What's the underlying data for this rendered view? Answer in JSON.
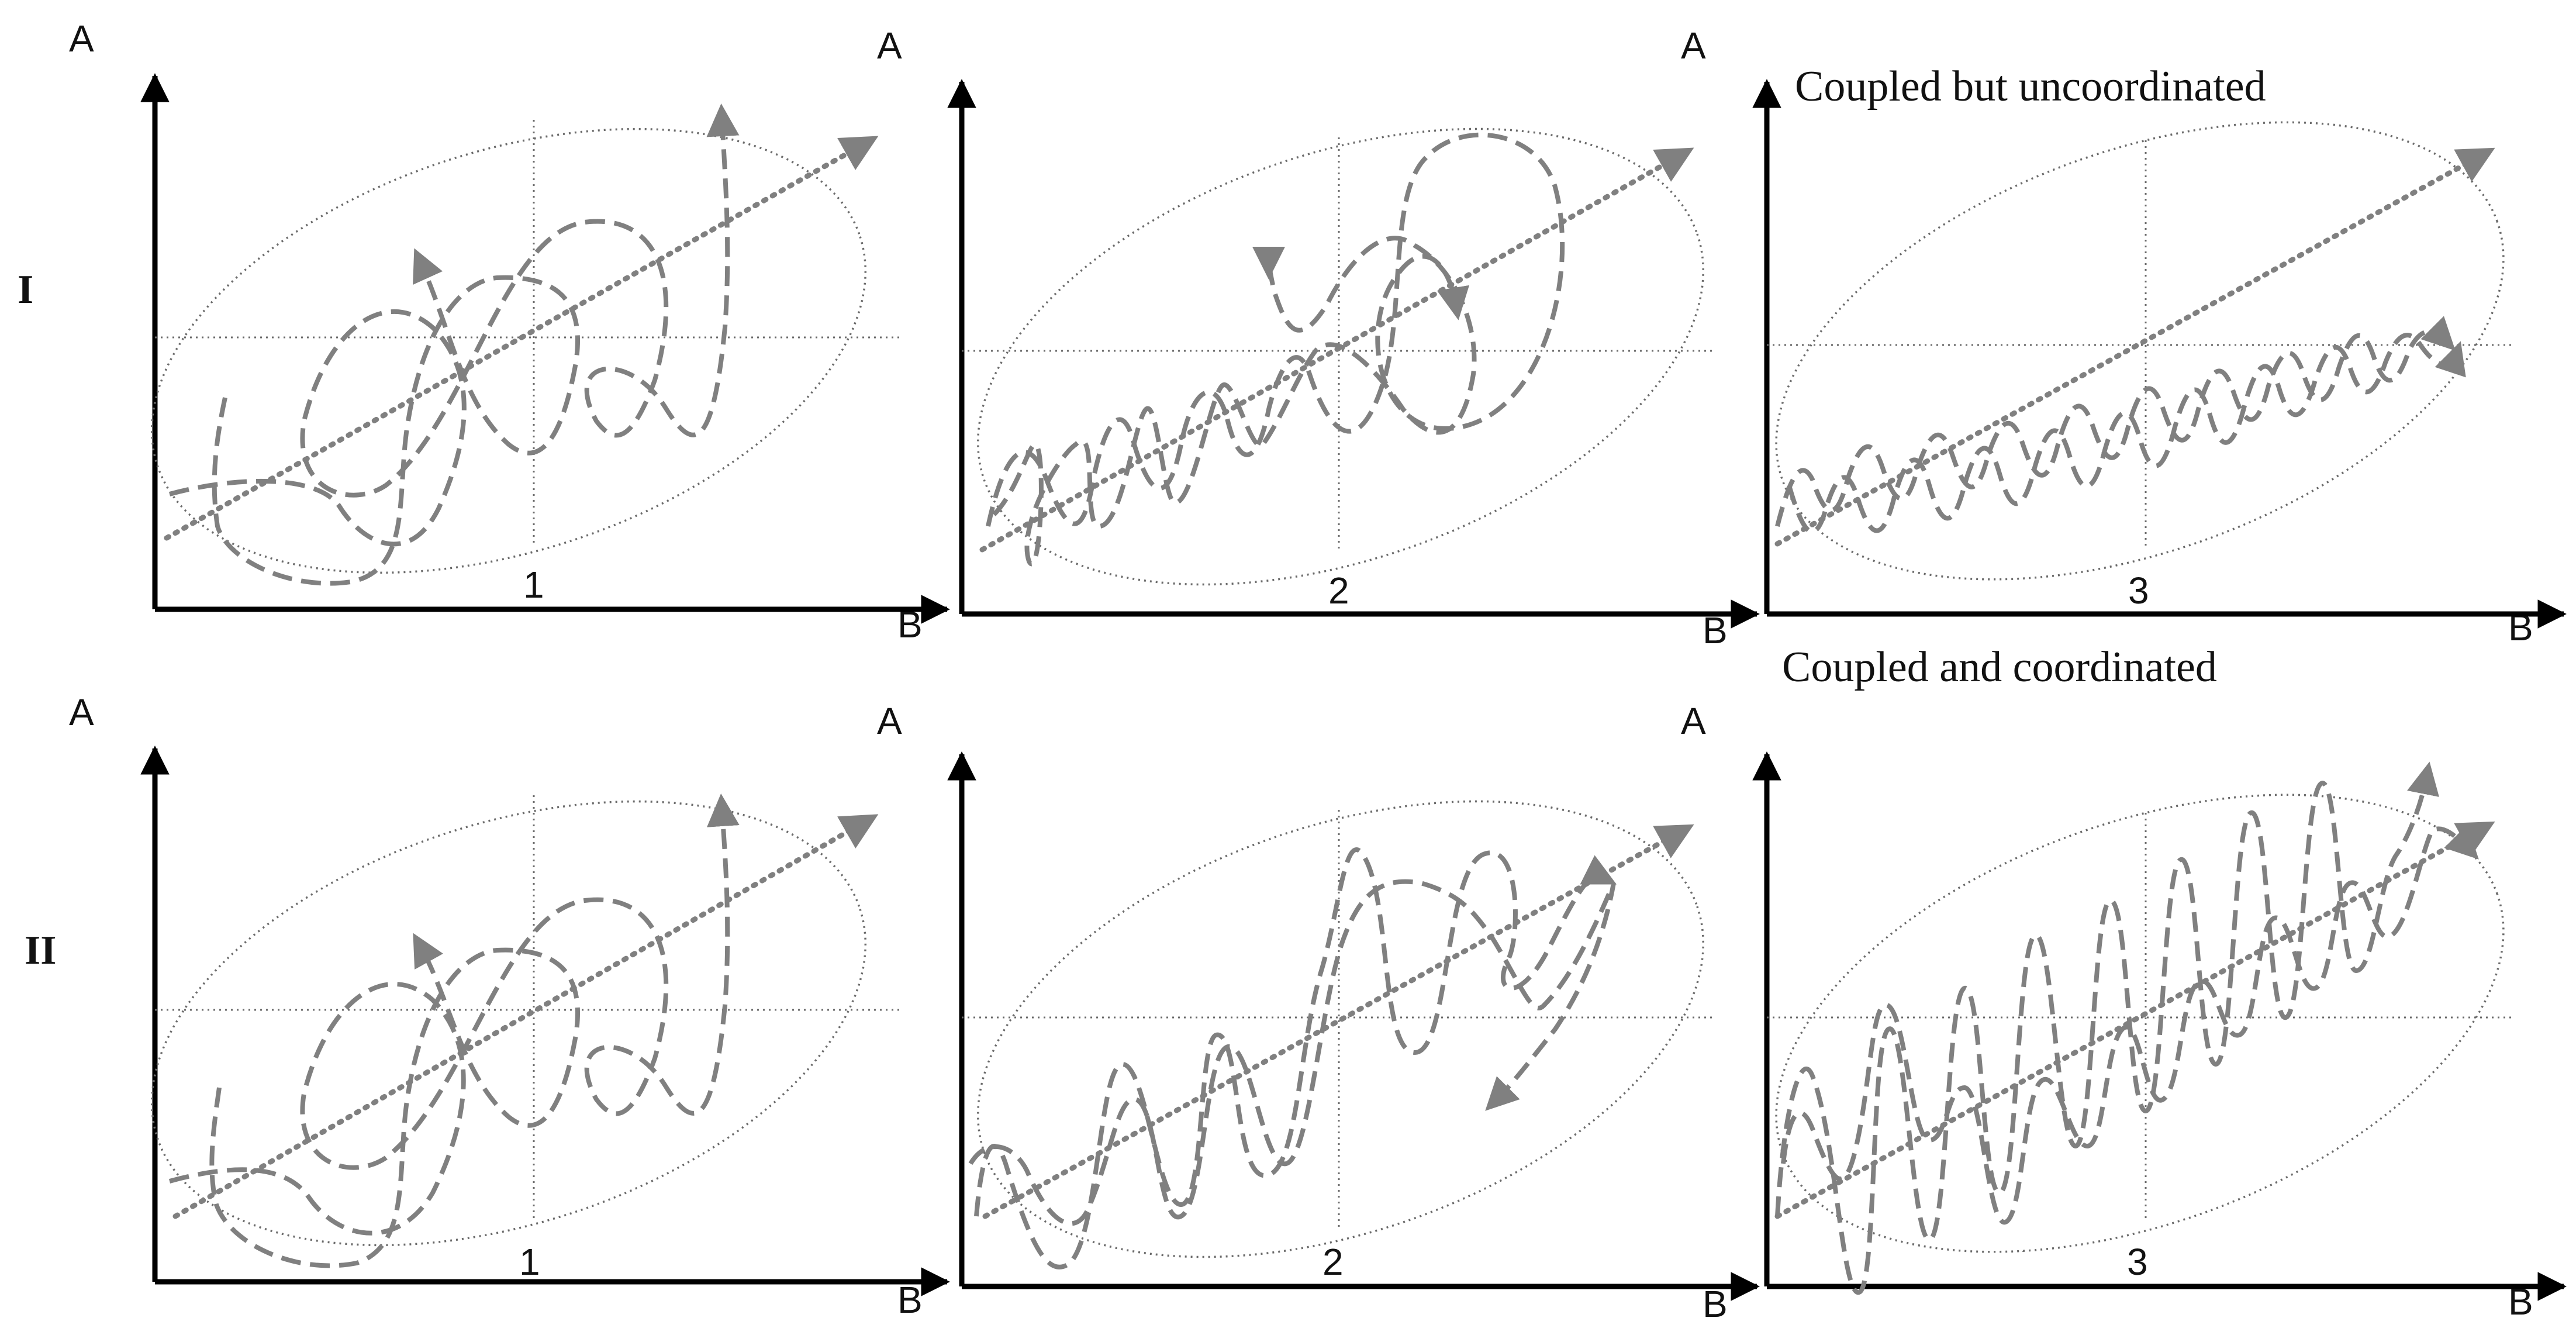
{
  "rows": [
    {
      "label": "I",
      "panels": [
        "1",
        "2",
        "3"
      ]
    },
    {
      "label": "II",
      "panels": [
        "1",
        "2",
        "3"
      ]
    }
  ],
  "axes": {
    "y": "A",
    "x": "B"
  },
  "captions": {
    "top": "Coupled but uncoordinated",
    "bottom": "Coupled and coordinated"
  },
  "colors": {
    "axis": "#000000",
    "trajectory": "#808080",
    "guide": "#6b6b6b"
  }
}
